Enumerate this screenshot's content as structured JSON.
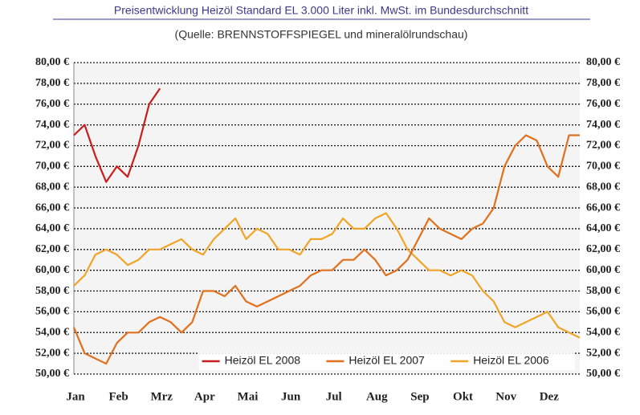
{
  "chart_data": {
    "type": "line",
    "title": "Preisentwicklung Heizöl Standard EL 3.000 Liter inkl. MwSt. im Bundesdurchschnitt",
    "subtitle": "(Quelle: BRENNSTOFFSPIEGEL und mineralölrundschau)",
    "categories": [
      "Jan",
      null,
      null,
      null,
      "Feb",
      null,
      null,
      null,
      "Mrz",
      null,
      null,
      null,
      "Apr",
      null,
      null,
      null,
      "Mai",
      null,
      null,
      null,
      "Jun",
      null,
      null,
      null,
      "Jul",
      null,
      null,
      null,
      "Aug",
      null,
      null,
      null,
      "Sep",
      null,
      null,
      null,
      "Okt",
      null,
      null,
      null,
      "Nov",
      null,
      null,
      null,
      "Dez",
      null,
      null,
      null
    ],
    "series": [
      {
        "name": "Heizöl EL 2008",
        "color": "#c81e1e",
        "values": [
          73,
          74,
          71,
          68.5,
          70,
          69,
          72,
          76,
          77.5,
          null,
          null,
          null,
          null,
          null,
          null,
          null,
          null,
          null,
          null,
          null,
          null,
          null,
          null,
          null,
          null,
          null,
          null,
          null,
          null,
          null,
          null,
          null,
          null,
          null,
          null,
          null,
          null,
          null,
          null,
          null,
          null,
          null,
          null,
          null,
          null,
          null,
          null,
          null
        ]
      },
      {
        "name": "Heizöl EL 2007",
        "color": "#e0701e",
        "values": [
          54.5,
          52,
          51.5,
          51,
          53,
          54,
          54,
          55,
          55.5,
          55,
          54,
          55,
          58,
          58,
          57.5,
          58.5,
          57,
          56.5,
          57,
          57.5,
          58,
          58.5,
          59.5,
          60,
          60,
          61,
          61,
          62,
          61,
          59.5,
          60,
          61,
          63,
          65,
          64,
          63.5,
          63,
          64,
          64.5,
          66,
          70,
          72,
          73,
          72.5,
          70,
          69,
          73,
          73
        ]
      },
      {
        "name": "Heizöl EL 2006",
        "color": "#f0a428",
        "values": [
          58.5,
          59.5,
          61.5,
          62,
          61.5,
          60.5,
          61,
          62,
          62,
          62.5,
          63,
          62,
          61.5,
          63,
          64,
          65,
          63,
          64,
          63.5,
          62,
          62,
          61.5,
          63,
          63,
          63.5,
          65,
          64,
          64,
          65,
          65.5,
          64,
          62,
          61,
          60,
          60,
          59.5,
          60,
          59.5,
          58,
          57,
          55,
          54.5,
          55,
          55.5,
          56,
          54.5,
          54,
          53.5
        ]
      }
    ],
    "ylim": [
      50,
      80
    ],
    "yticks": [
      {
        "value": 50,
        "label": "50,00 €"
      },
      {
        "value": 52,
        "label": "52,00 €"
      },
      {
        "value": 54,
        "label": "54,00 €"
      },
      {
        "value": 56,
        "label": "56,00 €"
      },
      {
        "value": 58,
        "label": "58,00 €"
      },
      {
        "value": 60,
        "label": "60,00 €"
      },
      {
        "value": 62,
        "label": "62,00 €"
      },
      {
        "value": 64,
        "label": "64,00 €"
      },
      {
        "value": 66,
        "label": "66,00 €"
      },
      {
        "value": 68,
        "label": "68,00 €"
      },
      {
        "value": 70,
        "label": "70,00 €"
      },
      {
        "value": 72,
        "label": "72,00 €"
      },
      {
        "value": 74,
        "label": "74,00 €"
      },
      {
        "value": 76,
        "label": "76,00 €"
      },
      {
        "value": 78,
        "label": "78,00 €"
      },
      {
        "value": 80,
        "label": "80,00 €"
      }
    ],
    "grid": true,
    "legend": "bottom-right"
  }
}
